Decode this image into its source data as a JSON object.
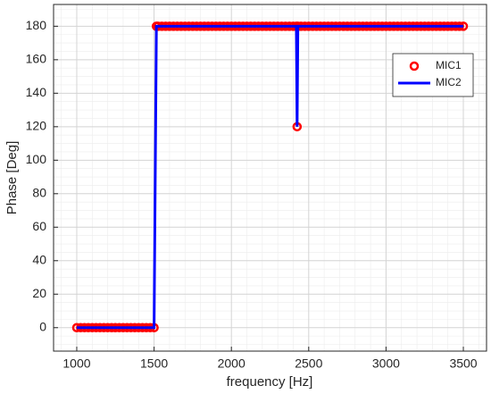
{
  "chart_data": {
    "type": "line",
    "xlabel": "frequency [Hz]",
    "ylabel": "Phase [Deg]",
    "x": [
      1000,
      1025,
      1050,
      1075,
      1100,
      1125,
      1150,
      1175,
      1200,
      1225,
      1250,
      1275,
      1300,
      1325,
      1350,
      1375,
      1400,
      1425,
      1450,
      1475,
      1500,
      1515,
      1525,
      1550,
      1575,
      1600,
      1625,
      1650,
      1675,
      1700,
      1725,
      1750,
      1775,
      1800,
      1825,
      1850,
      1875,
      1900,
      1925,
      1950,
      1975,
      2000,
      2025,
      2050,
      2075,
      2100,
      2125,
      2150,
      2175,
      2200,
      2225,
      2250,
      2275,
      2300,
      2325,
      2350,
      2375,
      2400,
      2420,
      2425,
      2430,
      2450,
      2475,
      2500,
      2525,
      2550,
      2575,
      2600,
      2625,
      2650,
      2675,
      2700,
      2725,
      2750,
      2775,
      2800,
      2825,
      2850,
      2875,
      2900,
      2925,
      2950,
      2975,
      3000,
      3025,
      3050,
      3075,
      3100,
      3125,
      3150,
      3175,
      3200,
      3225,
      3250,
      3275,
      3300,
      3325,
      3350,
      3375,
      3400,
      3425,
      3450,
      3475,
      3500
    ],
    "series": [
      {
        "name": "MIC1",
        "color": "#ff0000",
        "marker": "circle",
        "values": [
          0,
          0,
          0,
          0,
          0,
          0,
          0,
          0,
          0,
          0,
          0,
          0,
          0,
          0,
          0,
          0,
          0,
          0,
          0,
          0,
          0,
          180,
          180,
          180,
          180,
          180,
          180,
          180,
          180,
          180,
          180,
          180,
          180,
          180,
          180,
          180,
          180,
          180,
          180,
          180,
          180,
          180,
          180,
          180,
          180,
          180,
          180,
          180,
          180,
          180,
          180,
          180,
          180,
          180,
          180,
          180,
          180,
          180,
          180,
          120,
          180,
          180,
          180,
          180,
          180,
          180,
          180,
          180,
          180,
          180,
          180,
          180,
          180,
          180,
          180,
          180,
          180,
          180,
          180,
          180,
          180,
          180,
          180,
          180,
          180,
          180,
          180,
          180,
          180,
          180,
          180,
          180,
          180,
          180,
          180,
          180,
          180,
          180,
          180,
          180,
          180,
          180,
          180,
          180
        ]
      },
      {
        "name": "MIC2",
        "color": "#0000ff",
        "marker": "line",
        "values": [
          0,
          0,
          0,
          0,
          0,
          0,
          0,
          0,
          0,
          0,
          0,
          0,
          0,
          0,
          0,
          0,
          0,
          0,
          0,
          0,
          0,
          180,
          180,
          180,
          180,
          180,
          180,
          180,
          180,
          180,
          180,
          180,
          180,
          180,
          180,
          180,
          180,
          180,
          180,
          180,
          180,
          180,
          180,
          180,
          180,
          180,
          180,
          180,
          180,
          180,
          180,
          180,
          180,
          180,
          180,
          180,
          180,
          180,
          180,
          120,
          180,
          180,
          180,
          180,
          180,
          180,
          180,
          180,
          180,
          180,
          180,
          180,
          180,
          180,
          180,
          180,
          180,
          180,
          180,
          180,
          180,
          180,
          180,
          180,
          180,
          180,
          180,
          180,
          180,
          180,
          180,
          180,
          180,
          180,
          180,
          180,
          180,
          180,
          180,
          180,
          180,
          180,
          180,
          180
        ]
      }
    ],
    "xlim": [
      850,
      3650
    ],
    "ylim": [
      -14,
      193
    ],
    "xticks": [
      1000,
      1500,
      2000,
      2500,
      3000,
      3500
    ],
    "yticks": [
      0,
      20,
      40,
      60,
      80,
      100,
      120,
      140,
      160,
      180
    ],
    "grid": true,
    "minor_grid": true,
    "legend": "northeast"
  }
}
